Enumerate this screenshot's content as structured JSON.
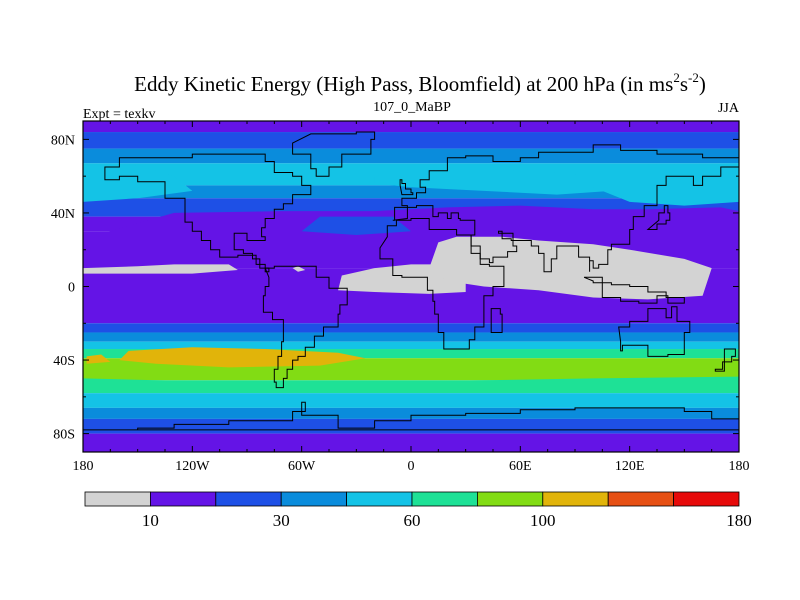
{
  "chart_data": {
    "type": "heatmap",
    "title": "Eddy Kinetic Energy (High Pass, Bloomfield) at 200 hPa (in m",
    "title_units_base": "s",
    "title_sup1": "2",
    "title_sup2": "-2",
    "title_close": ")",
    "subtitle_center": "107_0_MaBP",
    "subtitle_left": "Expt = texkv",
    "subtitle_right": "JJA",
    "lon_range": [
      -180,
      180
    ],
    "lat_range": [
      -90,
      90
    ],
    "x_ticks": [
      {
        "value": -180,
        "label": "180"
      },
      {
        "value": -120,
        "label": "120W"
      },
      {
        "value": -60,
        "label": "60W"
      },
      {
        "value": 0,
        "label": "0"
      },
      {
        "value": 60,
        "label": "60E"
      },
      {
        "value": 120,
        "label": "120E"
      },
      {
        "value": 180,
        "label": "180"
      }
    ],
    "y_ticks": [
      {
        "value": 80,
        "label": "80N"
      },
      {
        "value": 40,
        "label": "40N"
      },
      {
        "value": 0,
        "label": "0"
      },
      {
        "value": -40,
        "label": "40S"
      },
      {
        "value": -80,
        "label": "80S"
      }
    ],
    "levels": [
      10,
      20,
      30,
      45,
      60,
      80,
      100,
      120,
      140,
      180
    ],
    "colorbar_labels": [
      {
        "value": 10,
        "label": "10"
      },
      {
        "value": 30,
        "label": "30"
      },
      {
        "value": 60,
        "label": "60"
      },
      {
        "value": 100,
        "label": "100"
      },
      {
        "value": 180,
        "label": "180"
      }
    ],
    "colors": [
      "#d3d3d3",
      "#6414e6",
      "#1e50e6",
      "#0a8cdc",
      "#14c3e6",
      "#1ee196",
      "#82dc14",
      "#e1b40a",
      "#e65014",
      "#e60a0a"
    ],
    "coast_color": "#000000",
    "background_color": "#ffffff"
  }
}
